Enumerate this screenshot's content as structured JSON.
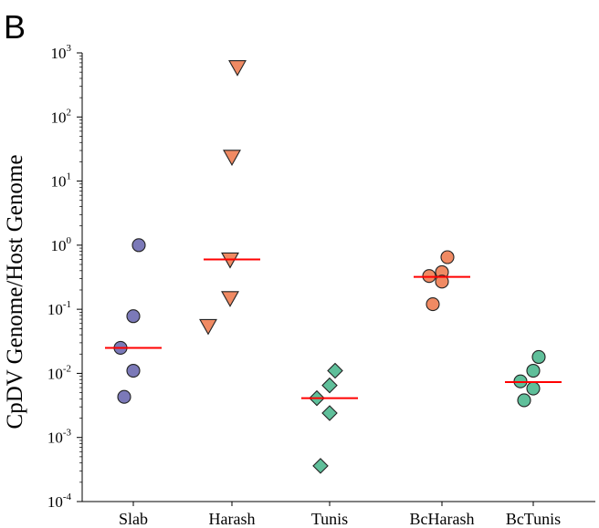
{
  "panel_label": "B",
  "chart_data": {
    "type": "scatter",
    "ylabel": "CpDV Genome/Host Genome",
    "xlabel": "",
    "yscale": "log10",
    "ylim": [
      0.0001,
      1000
    ],
    "yticks": [
      {
        "base": "10",
        "exp": "3"
      },
      {
        "base": "10",
        "exp": "2"
      },
      {
        "base": "10",
        "exp": "1"
      },
      {
        "base": "10",
        "exp": "0"
      },
      {
        "base": "10",
        "exp": "-1"
      },
      {
        "base": "10",
        "exp": "-2"
      },
      {
        "base": "10",
        "exp": "-3"
      },
      {
        "base": "10",
        "exp": "-4"
      }
    ],
    "categories": [
      "Slab",
      "Harash",
      "Tunis",
      "BcHarash",
      "BcTunis"
    ],
    "median_color": "#ff0000",
    "groups": [
      {
        "category": "Slab",
        "marker": "circle",
        "color": "#7b79b8",
        "values": [
          1.0,
          0.078,
          0.025,
          0.011,
          0.0043
        ],
        "median": 0.025
      },
      {
        "category": "Harash",
        "marker": "triangle-down",
        "color": "#f08a63",
        "values": [
          600,
          24,
          0.6,
          0.15,
          0.055
        ],
        "median": 0.6
      },
      {
        "category": "Tunis",
        "marker": "diamond",
        "color": "#5fbf9a",
        "values": [
          0.011,
          0.0065,
          0.0041,
          0.0024,
          0.00036
        ],
        "median": 0.0041
      },
      {
        "category": "BcHarash",
        "marker": "circle",
        "color": "#f08a63",
        "values": [
          0.65,
          0.38,
          0.33,
          0.27,
          0.12
        ],
        "median": 0.32
      },
      {
        "category": "BcTunis",
        "marker": "circle",
        "color": "#5fbf9a",
        "values": [
          0.018,
          0.011,
          0.0075,
          0.0058,
          0.0038
        ],
        "median": 0.0073
      }
    ]
  }
}
